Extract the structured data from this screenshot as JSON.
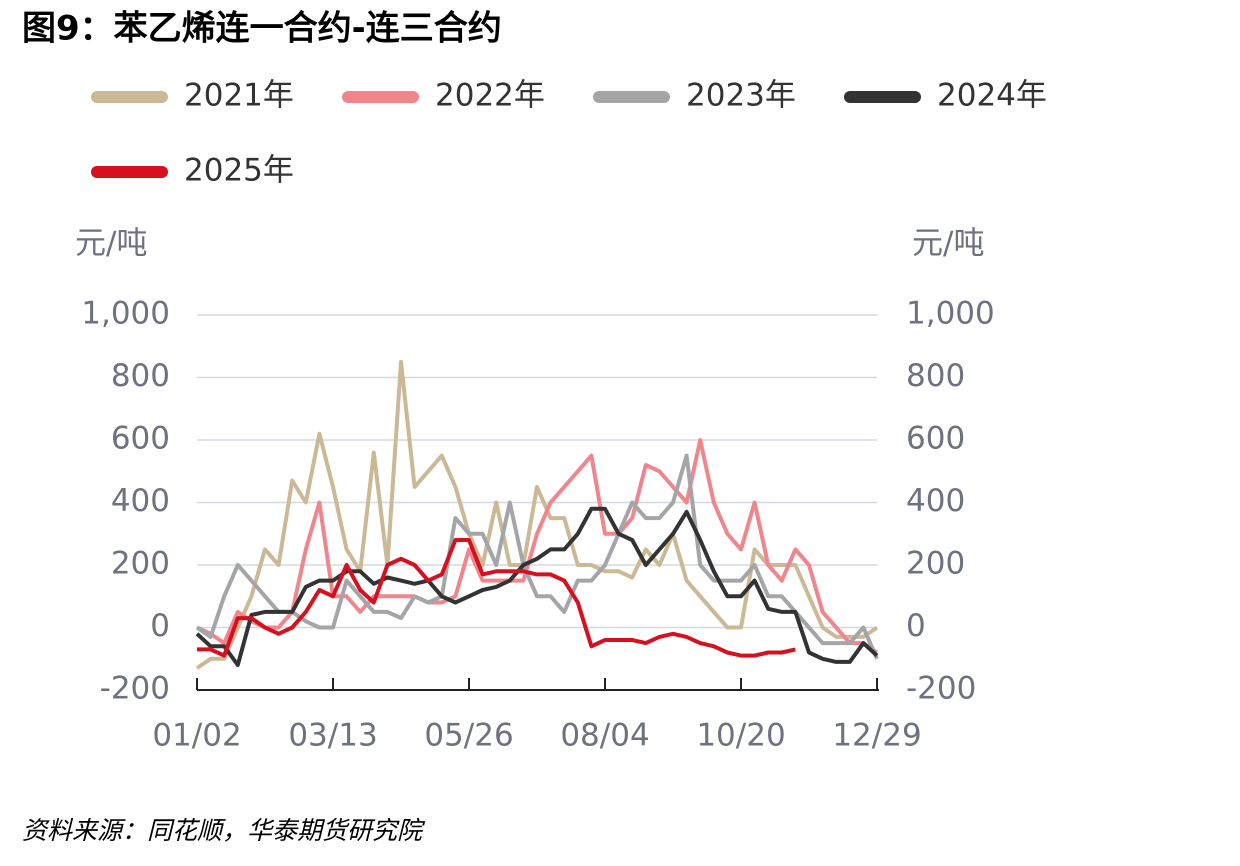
{
  "chart_data": {
    "type": "line",
    "title": "图9：苯乙烯连一合约-连三合约",
    "y_label": "元/吨",
    "y2_label": "元/吨",
    "source": "资料来源：同花顺，华泰期货研究院",
    "categories": [
      "01/02",
      null,
      null,
      null,
      null,
      null,
      null,
      null,
      null,
      null,
      "03/13",
      null,
      null,
      null,
      null,
      null,
      null,
      null,
      null,
      null,
      "05/26",
      null,
      null,
      null,
      null,
      null,
      null,
      null,
      null,
      null,
      "08/04",
      null,
      null,
      null,
      null,
      null,
      null,
      null,
      null,
      null,
      "10/20",
      null,
      null,
      null,
      null,
      null,
      null,
      null,
      null,
      null,
      "12/29"
    ],
    "ylim": [
      -200,
      1000
    ],
    "yticks": [
      -200,
      0,
      200,
      400,
      600,
      800,
      {
        "value": 1000,
        "label": "1,000"
      }
    ],
    "y2lim": [
      -200,
      1000
    ],
    "y2ticks": [
      -200,
      0,
      200,
      400,
      600,
      800,
      {
        "value": 1000,
        "label": "1,000"
      }
    ],
    "grid": true,
    "series": [
      {
        "name": "2021年",
        "color": "#cbb996",
        "values": [
          -130,
          -100,
          -100,
          0,
          100,
          250,
          200,
          470,
          400,
          620,
          450,
          250,
          180,
          560,
          200,
          850,
          450,
          500,
          550,
          450,
          300,
          200,
          400,
          200,
          200,
          450,
          350,
          350,
          200,
          200,
          180,
          180,
          160,
          250,
          200,
          300,
          150,
          100,
          50,
          0,
          0,
          250,
          200,
          200,
          200,
          100,
          0,
          -30,
          -30,
          -30,
          0
        ]
      },
      {
        "name": "2022年",
        "color": "#f0868c",
        "values": [
          0,
          -20,
          -50,
          50,
          20,
          0,
          0,
          50,
          250,
          400,
          100,
          100,
          50,
          100,
          100,
          100,
          100,
          80,
          80,
          100,
          250,
          150,
          150,
          150,
          150,
          300,
          400,
          450,
          500,
          550,
          300,
          300,
          350,
          520,
          500,
          450,
          400,
          600,
          400,
          300,
          250,
          400,
          200,
          150,
          250,
          200,
          50,
          0,
          -50,
          -50,
          -80
        ]
      },
      {
        "name": "2023年",
        "color": "#a3a5a8",
        "values": [
          0,
          -30,
          100,
          200,
          150,
          100,
          50,
          50,
          20,
          0,
          0,
          150,
          100,
          50,
          50,
          30,
          100,
          80,
          100,
          350,
          300,
          300,
          200,
          400,
          200,
          100,
          100,
          50,
          150,
          150,
          200,
          300,
          400,
          350,
          350,
          400,
          550,
          200,
          150,
          150,
          150,
          200,
          100,
          100,
          50,
          0,
          -50,
          -50,
          -50,
          0,
          -100
        ]
      },
      {
        "name": "2024年",
        "color": "#333333",
        "values": [
          -20,
          -60,
          -60,
          -120,
          40,
          50,
          50,
          50,
          130,
          150,
          150,
          180,
          180,
          140,
          160,
          150,
          140,
          150,
          100,
          80,
          100,
          120,
          130,
          150,
          200,
          220,
          250,
          250,
          300,
          380,
          380,
          300,
          280,
          200,
          250,
          300,
          370,
          280,
          180,
          100,
          100,
          150,
          60,
          50,
          50,
          -80,
          -100,
          -110,
          -110,
          -50,
          -90
        ]
      },
      {
        "name": "2025年",
        "color": "#d7101f",
        "values": [
          -70,
          -70,
          -90,
          30,
          30,
          0,
          -20,
          0,
          50,
          120,
          100,
          200,
          120,
          80,
          200,
          220,
          200,
          150,
          170,
          280,
          280,
          170,
          180,
          180,
          180,
          170,
          170,
          150,
          80,
          -60,
          -40,
          -40,
          -40,
          -50,
          -30,
          -20,
          -30,
          -50,
          -60,
          -80,
          -90,
          -90,
          -80,
          -80,
          -70,
          null,
          null,
          null,
          null,
          null,
          null
        ]
      }
    ]
  }
}
